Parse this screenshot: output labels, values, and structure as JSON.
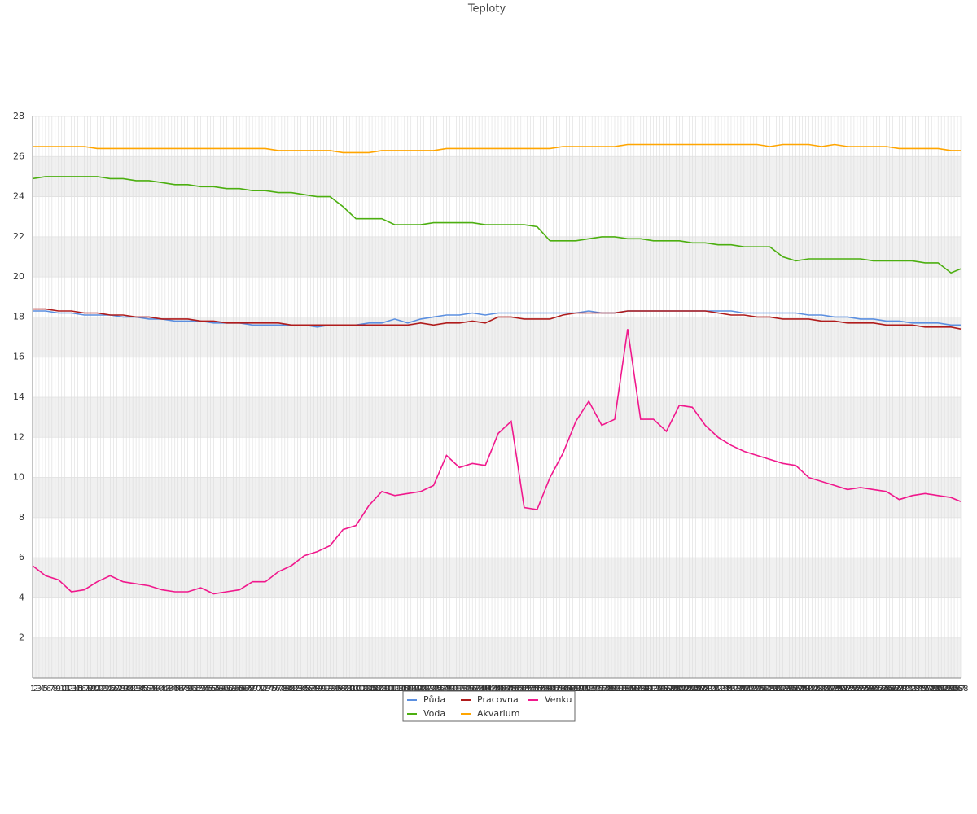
{
  "chart_data": {
    "type": "line",
    "title": "Teploty",
    "xlim": [
      1,
      288
    ],
    "xticks": [
      1,
      2,
      3,
      4,
      5,
      6,
      7,
      8,
      9,
      10,
      11,
      12,
      13,
      14,
      15,
      16,
      17,
      18,
      19,
      20,
      21,
      22,
      23,
      24,
      25,
      26,
      27,
      28,
      29,
      30,
      31,
      32,
      33,
      34,
      35,
      36,
      37,
      38,
      39,
      40,
      41,
      42,
      43,
      44,
      45,
      46,
      47,
      48,
      49,
      50,
      51,
      52,
      53,
      54,
      55,
      56,
      57,
      58,
      59,
      60,
      61,
      62,
      63,
      64,
      65,
      66,
      67,
      68,
      69,
      70,
      71,
      72,
      73,
      74,
      75,
      76,
      77,
      78,
      79,
      80,
      81,
      82,
      83,
      84,
      85,
      86,
      87,
      88,
      89,
      90,
      91,
      92,
      93,
      94,
      95,
      96,
      97,
      98,
      99,
      100,
      101,
      102,
      103,
      104,
      105,
      106,
      107,
      108,
      109,
      110,
      111,
      112,
      113,
      114,
      115,
      116,
      117,
      118,
      119,
      120,
      121,
      122,
      123,
      124,
      125,
      126,
      127,
      128,
      129,
      130,
      131,
      132,
      133,
      134,
      135,
      136,
      137,
      138,
      139,
      140,
      141,
      142,
      143,
      144,
      145,
      146,
      147,
      148,
      149,
      150,
      151,
      152,
      153,
      154,
      155,
      156,
      157,
      158,
      159,
      160,
      161,
      162,
      163,
      164,
      165,
      166,
      167,
      168,
      169,
      170,
      171,
      172,
      173,
      174,
      175,
      176,
      177,
      178,
      179,
      180,
      181,
      182,
      183,
      184,
      185,
      186,
      187,
      188,
      189,
      190,
      191,
      192,
      193,
      194,
      195,
      196,
      197,
      198,
      199,
      200,
      201,
      202,
      203,
      204,
      205,
      206,
      207,
      208,
      209,
      210,
      211,
      212,
      213,
      214,
      215,
      216,
      217,
      218,
      219,
      220,
      221,
      222,
      223,
      224,
      225,
      226,
      227,
      228,
      229,
      230,
      231,
      232,
      233,
      234,
      235,
      236,
      237,
      238,
      239,
      240,
      241,
      242,
      243,
      244,
      245,
      246,
      247,
      248,
      249,
      250,
      251,
      252,
      253,
      254,
      255,
      256,
      257,
      258,
      259,
      260,
      261,
      262,
      263,
      264,
      265,
      266,
      267,
      268,
      269,
      270,
      271,
      272,
      273,
      274,
      275,
      276,
      277,
      278,
      279,
      280,
      281,
      282,
      283,
      284,
      285,
      286,
      287,
      288
    ],
    "ylim": [
      0,
      28
    ],
    "yticks": [
      2,
      4,
      6,
      8,
      10,
      12,
      14,
      16,
      18,
      20,
      22,
      24,
      26,
      28
    ],
    "grid": true,
    "legend": "bottom",
    "x": [
      1,
      5,
      9,
      13,
      17,
      21,
      25,
      29,
      33,
      37,
      41,
      45,
      49,
      53,
      57,
      61,
      65,
      69,
      73,
      77,
      81,
      85,
      89,
      93,
      97,
      101,
      105,
      109,
      113,
      117,
      121,
      125,
      129,
      133,
      137,
      141,
      145,
      149,
      153,
      157,
      161,
      165,
      169,
      173,
      177,
      181,
      185,
      189,
      193,
      197,
      201,
      205,
      209,
      213,
      217,
      221,
      225,
      229,
      233,
      237,
      241,
      245,
      249,
      253,
      257,
      261,
      265,
      269,
      273,
      277,
      281,
      285,
      288
    ],
    "series": [
      {
        "name": "Půda",
        "color": "#5b8fe0",
        "values": [
          18.3,
          18.3,
          18.2,
          18.2,
          18.1,
          18.1,
          18.1,
          18.0,
          18.0,
          17.9,
          17.9,
          17.8,
          17.8,
          17.8,
          17.7,
          17.7,
          17.7,
          17.6,
          17.6,
          17.6,
          17.6,
          17.6,
          17.5,
          17.6,
          17.6,
          17.6,
          17.7,
          17.7,
          17.9,
          17.7,
          17.9,
          18.0,
          18.1,
          18.1,
          18.2,
          18.1,
          18.2,
          18.2,
          18.2,
          18.2,
          18.2,
          18.2,
          18.2,
          18.3,
          18.2,
          18.2,
          18.3,
          18.3,
          18.3,
          18.3,
          18.3,
          18.3,
          18.3,
          18.3,
          18.3,
          18.2,
          18.2,
          18.2,
          18.2,
          18.2,
          18.1,
          18.1,
          18.0,
          18.0,
          17.9,
          17.9,
          17.8,
          17.8,
          17.7,
          17.7,
          17.7,
          17.6,
          17.6
        ]
      },
      {
        "name": "Voda",
        "color": "#4caf10",
        "values": [
          24.9,
          25.0,
          25.0,
          25.0,
          25.0,
          25.0,
          24.9,
          24.9,
          24.8,
          24.8,
          24.7,
          24.6,
          24.6,
          24.5,
          24.5,
          24.4,
          24.4,
          24.3,
          24.3,
          24.2,
          24.2,
          24.1,
          24.0,
          24.0,
          23.5,
          22.9,
          22.9,
          22.9,
          22.6,
          22.6,
          22.6,
          22.7,
          22.7,
          22.7,
          22.7,
          22.6,
          22.6,
          22.6,
          22.6,
          22.5,
          21.8,
          21.8,
          21.8,
          21.9,
          22.0,
          22.0,
          21.9,
          21.9,
          21.8,
          21.8,
          21.8,
          21.7,
          21.7,
          21.6,
          21.6,
          21.5,
          21.5,
          21.5,
          21.0,
          20.8,
          20.9,
          20.9,
          20.9,
          20.9,
          20.9,
          20.8,
          20.8,
          20.8,
          20.8,
          20.7,
          20.7,
          20.2,
          20.4
        ]
      },
      {
        "name": "Pracovna",
        "color": "#b01c1c",
        "values": [
          18.4,
          18.4,
          18.3,
          18.3,
          18.2,
          18.2,
          18.1,
          18.1,
          18.0,
          18.0,
          17.9,
          17.9,
          17.9,
          17.8,
          17.8,
          17.7,
          17.7,
          17.7,
          17.7,
          17.7,
          17.6,
          17.6,
          17.6,
          17.6,
          17.6,
          17.6,
          17.6,
          17.6,
          17.6,
          17.6,
          17.7,
          17.6,
          17.7,
          17.7,
          17.8,
          17.7,
          18.0,
          18.0,
          17.9,
          17.9,
          17.9,
          18.1,
          18.2,
          18.2,
          18.2,
          18.2,
          18.3,
          18.3,
          18.3,
          18.3,
          18.3,
          18.3,
          18.3,
          18.2,
          18.1,
          18.1,
          18.0,
          18.0,
          17.9,
          17.9,
          17.9,
          17.8,
          17.8,
          17.7,
          17.7,
          17.7,
          17.6,
          17.6,
          17.6,
          17.5,
          17.5,
          17.5,
          17.4
        ]
      },
      {
        "name": "Akvarium",
        "color": "#ffa500",
        "values": [
          26.5,
          26.5,
          26.5,
          26.5,
          26.5,
          26.4,
          26.4,
          26.4,
          26.4,
          26.4,
          26.4,
          26.4,
          26.4,
          26.4,
          26.4,
          26.4,
          26.4,
          26.4,
          26.4,
          26.3,
          26.3,
          26.3,
          26.3,
          26.3,
          26.2,
          26.2,
          26.2,
          26.3,
          26.3,
          26.3,
          26.3,
          26.3,
          26.4,
          26.4,
          26.4,
          26.4,
          26.4,
          26.4,
          26.4,
          26.4,
          26.4,
          26.5,
          26.5,
          26.5,
          26.5,
          26.5,
          26.6,
          26.6,
          26.6,
          26.6,
          26.6,
          26.6,
          26.6,
          26.6,
          26.6,
          26.6,
          26.6,
          26.5,
          26.6,
          26.6,
          26.6,
          26.5,
          26.6,
          26.5,
          26.5,
          26.5,
          26.5,
          26.4,
          26.4,
          26.4,
          26.4,
          26.3,
          26.3
        ]
      },
      {
        "name": "Venku",
        "color": "#f0188c",
        "values": [
          5.6,
          5.1,
          4.9,
          4.3,
          4.4,
          4.8,
          5.1,
          4.8,
          4.7,
          4.6,
          4.4,
          4.3,
          4.3,
          4.5,
          4.2,
          4.3,
          4.4,
          4.8,
          4.8,
          5.3,
          5.6,
          6.1,
          6.3,
          6.6,
          7.4,
          7.6,
          8.6,
          9.3,
          9.1,
          9.2,
          9.3,
          9.6,
          11.1,
          10.5,
          10.7,
          10.6,
          12.2,
          12.8,
          8.5,
          8.4,
          10.0,
          11.2,
          12.8,
          13.8,
          12.6,
          12.9,
          17.4,
          12.9,
          12.9,
          12.3,
          13.6,
          13.5,
          12.6,
          12.0,
          11.6,
          11.3,
          11.1,
          10.9,
          10.7,
          10.6,
          10.0,
          9.8,
          9.6,
          9.4,
          9.5,
          9.4,
          9.3,
          8.9,
          9.1,
          9.2,
          9.1,
          9.0,
          8.8
        ]
      }
    ]
  }
}
